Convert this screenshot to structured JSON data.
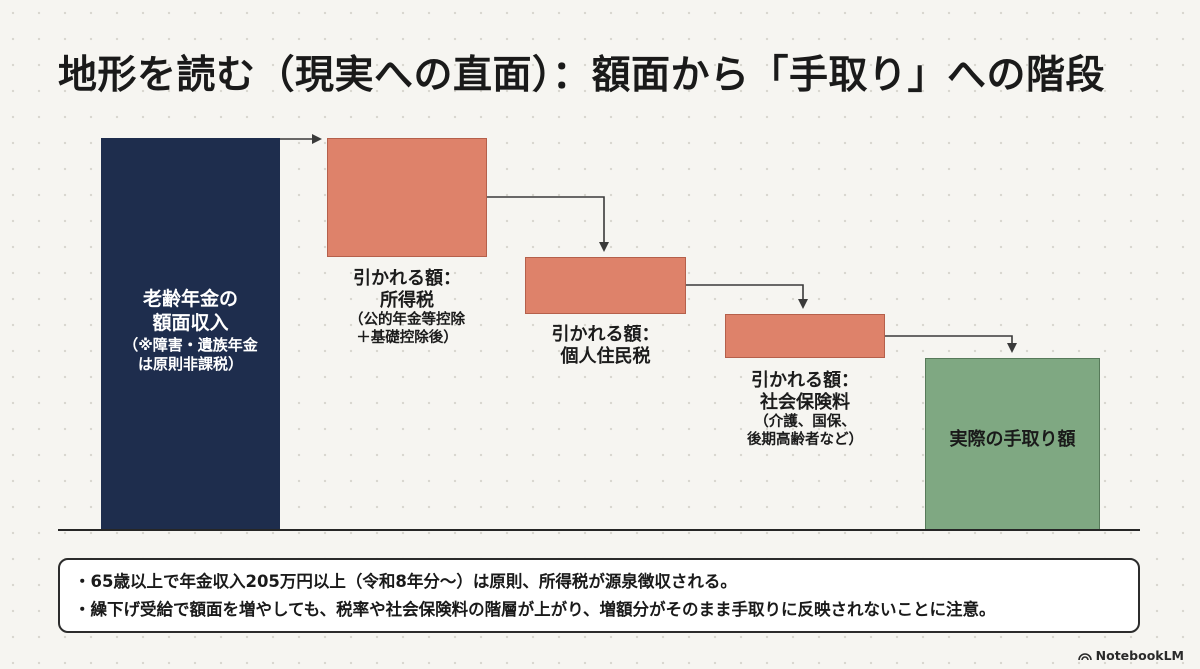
{
  "title": "地形を読む（現実への直面）：額面から「手取り」への階段",
  "colors": {
    "gross_bar": "#1e2d4d",
    "deduction_bar": "#de826a",
    "net_bar": "#7fa882",
    "background": "#f6f5f1"
  },
  "steps": {
    "gross": {
      "line1": "老齢年金の",
      "line2": "額面収入",
      "note1": "（※障害・遺族年金",
      "note2": "は原則非課税）"
    },
    "income_tax": {
      "head": "引かれる額：",
      "name": "所得税",
      "note1": "（公的年金等控除",
      "note2": "＋基礎控除後）"
    },
    "resident_tax": {
      "head": "引かれる額：",
      "name": "個人住民税"
    },
    "social_insurance": {
      "head": "引かれる額：",
      "name": "社会保険料",
      "note1": "（介護、国保、",
      "note2": "後期高齢者など）"
    },
    "net": {
      "label": "実際の手取り額"
    }
  },
  "notes": [
    "・65歳以上で年金収入205万円以上（令和8年分〜）は原則、所得税が源泉徴収される。",
    "・繰下げ受給で額面を増やしても、税率や社会保険料の階層が上がり、増額分がそのまま手取りに反映されないことに注意。"
  ],
  "brand": {
    "name": "NotebookLM",
    "icon": "notebooklm-logo-icon"
  }
}
